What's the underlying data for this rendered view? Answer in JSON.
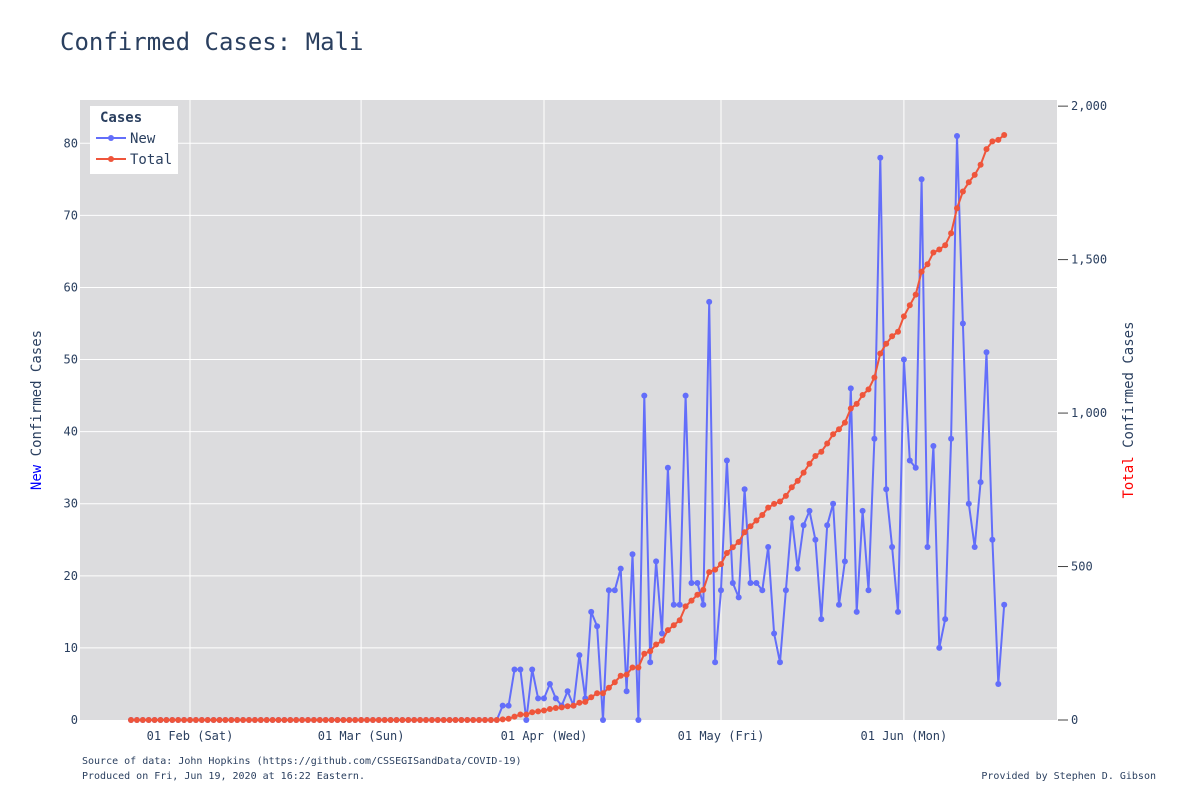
{
  "chart_data": {
    "type": "line",
    "title": "Confirmed Cases: Mali",
    "x_start": "2020-01-22",
    "x_ticks": [
      {
        "date": "2020-02-01",
        "label": "01 Feb (Sat)"
      },
      {
        "date": "2020-03-01",
        "label": "01 Mar (Sun)"
      },
      {
        "date": "2020-04-01",
        "label": "01 Apr (Wed)"
      },
      {
        "date": "2020-05-01",
        "label": "01 May (Fri)"
      },
      {
        "date": "2020-06-01",
        "label": "01 Jun (Mon)"
      }
    ],
    "y_left": {
      "title_prefix": "New",
      "title_rest": " Confirmed Cases",
      "prefix_color": "#0000ff",
      "range": [
        0,
        86
      ],
      "ticks": [
        {
          "v": 0,
          "label": "0"
        },
        {
          "v": 10,
          "label": "10"
        },
        {
          "v": 20,
          "label": "20"
        },
        {
          "v": 30,
          "label": "30"
        },
        {
          "v": 40,
          "label": "40"
        },
        {
          "v": 50,
          "label": "50"
        },
        {
          "v": 60,
          "label": "60"
        },
        {
          "v": 70,
          "label": "70"
        },
        {
          "v": 80,
          "label": "80"
        }
      ]
    },
    "y_right": {
      "title_prefix": "Total",
      "title_rest": " Confirmed Cases",
      "prefix_color": "#ff0000",
      "range": [
        0,
        2020
      ],
      "ticks": [
        {
          "v": 0,
          "label": "0"
        },
        {
          "v": 500,
          "label": "500"
        },
        {
          "v": 1000,
          "label": "1,000"
        },
        {
          "v": 1500,
          "label": "1,500"
        },
        {
          "v": 2000,
          "label": "2,000"
        }
      ]
    },
    "legend": {
      "title": "Cases",
      "placement": "top-left"
    },
    "series": [
      {
        "name": "New",
        "axis": "left",
        "color": "#636efa",
        "values": [
          0,
          0,
          0,
          0,
          0,
          0,
          0,
          0,
          0,
          0,
          0,
          0,
          0,
          0,
          0,
          0,
          0,
          0,
          0,
          0,
          0,
          0,
          0,
          0,
          0,
          0,
          0,
          0,
          0,
          0,
          0,
          0,
          0,
          0,
          0,
          0,
          0,
          0,
          0,
          0,
          0,
          0,
          0,
          0,
          0,
          0,
          0,
          0,
          0,
          0,
          0,
          0,
          0,
          0,
          0,
          0,
          0,
          0,
          0,
          0,
          0,
          0,
          0,
          2,
          2,
          7,
          7,
          0,
          7,
          3,
          3,
          5,
          3,
          2,
          4,
          2,
          9,
          3,
          15,
          13,
          0,
          18,
          18,
          21,
          4,
          23,
          0,
          45,
          8,
          22,
          12,
          35,
          16,
          16,
          45,
          19,
          19,
          16,
          58,
          8,
          18,
          36,
          19,
          17,
          32,
          19,
          19,
          18,
          24,
          12,
          8,
          18,
          28,
          21,
          27,
          29,
          25,
          14,
          27,
          30,
          16,
          22,
          46,
          15,
          29,
          18,
          39,
          78,
          32,
          24,
          15,
          50,
          36,
          35,
          75,
          24,
          38,
          10,
          14,
          39,
          81,
          55,
          30,
          24,
          33,
          51,
          25,
          5,
          16
        ]
      },
      {
        "name": "Total",
        "axis": "right",
        "color": "#ef553b",
        "values": [
          0,
          0,
          0,
          0,
          0,
          0,
          0,
          0,
          0,
          0,
          0,
          0,
          0,
          0,
          0,
          0,
          0,
          0,
          0,
          0,
          0,
          0,
          0,
          0,
          0,
          0,
          0,
          0,
          0,
          0,
          0,
          0,
          0,
          0,
          0,
          0,
          0,
          0,
          0,
          0,
          0,
          0,
          0,
          0,
          0,
          0,
          0,
          0,
          0,
          0,
          0,
          0,
          0,
          0,
          0,
          0,
          0,
          0,
          0,
          0,
          0,
          0,
          0,
          2,
          4,
          11,
          18,
          18,
          25,
          28,
          31,
          36,
          39,
          41,
          45,
          47,
          56,
          59,
          74,
          87,
          87,
          105,
          123,
          144,
          148,
          171,
          171,
          216,
          224,
          246,
          258,
          293,
          309,
          325,
          370,
          389,
          408,
          424,
          482,
          490,
          508,
          544,
          563,
          580,
          612,
          631,
          650,
          668,
          692,
          704,
          712,
          730,
          758,
          779,
          806,
          835,
          860,
          874,
          901,
          931,
          947,
          969,
          1015,
          1030,
          1059,
          1077,
          1116,
          1194,
          1226,
          1250,
          1265,
          1315,
          1351,
          1386,
          1461,
          1485,
          1523,
          1533,
          1547,
          1586,
          1667,
          1722,
          1752,
          1776,
          1809,
          1860,
          1885,
          1890,
          1906
        ]
      }
    ]
  },
  "footer": {
    "source": "Source of data: John Hopkins (https://github.com/CSSEGISandData/COVID-19)",
    "produced": "Produced on Fri, Jun 19, 2020 at 16:22 Eastern.",
    "credit": "Provided by Stephen D. Gibson"
  }
}
